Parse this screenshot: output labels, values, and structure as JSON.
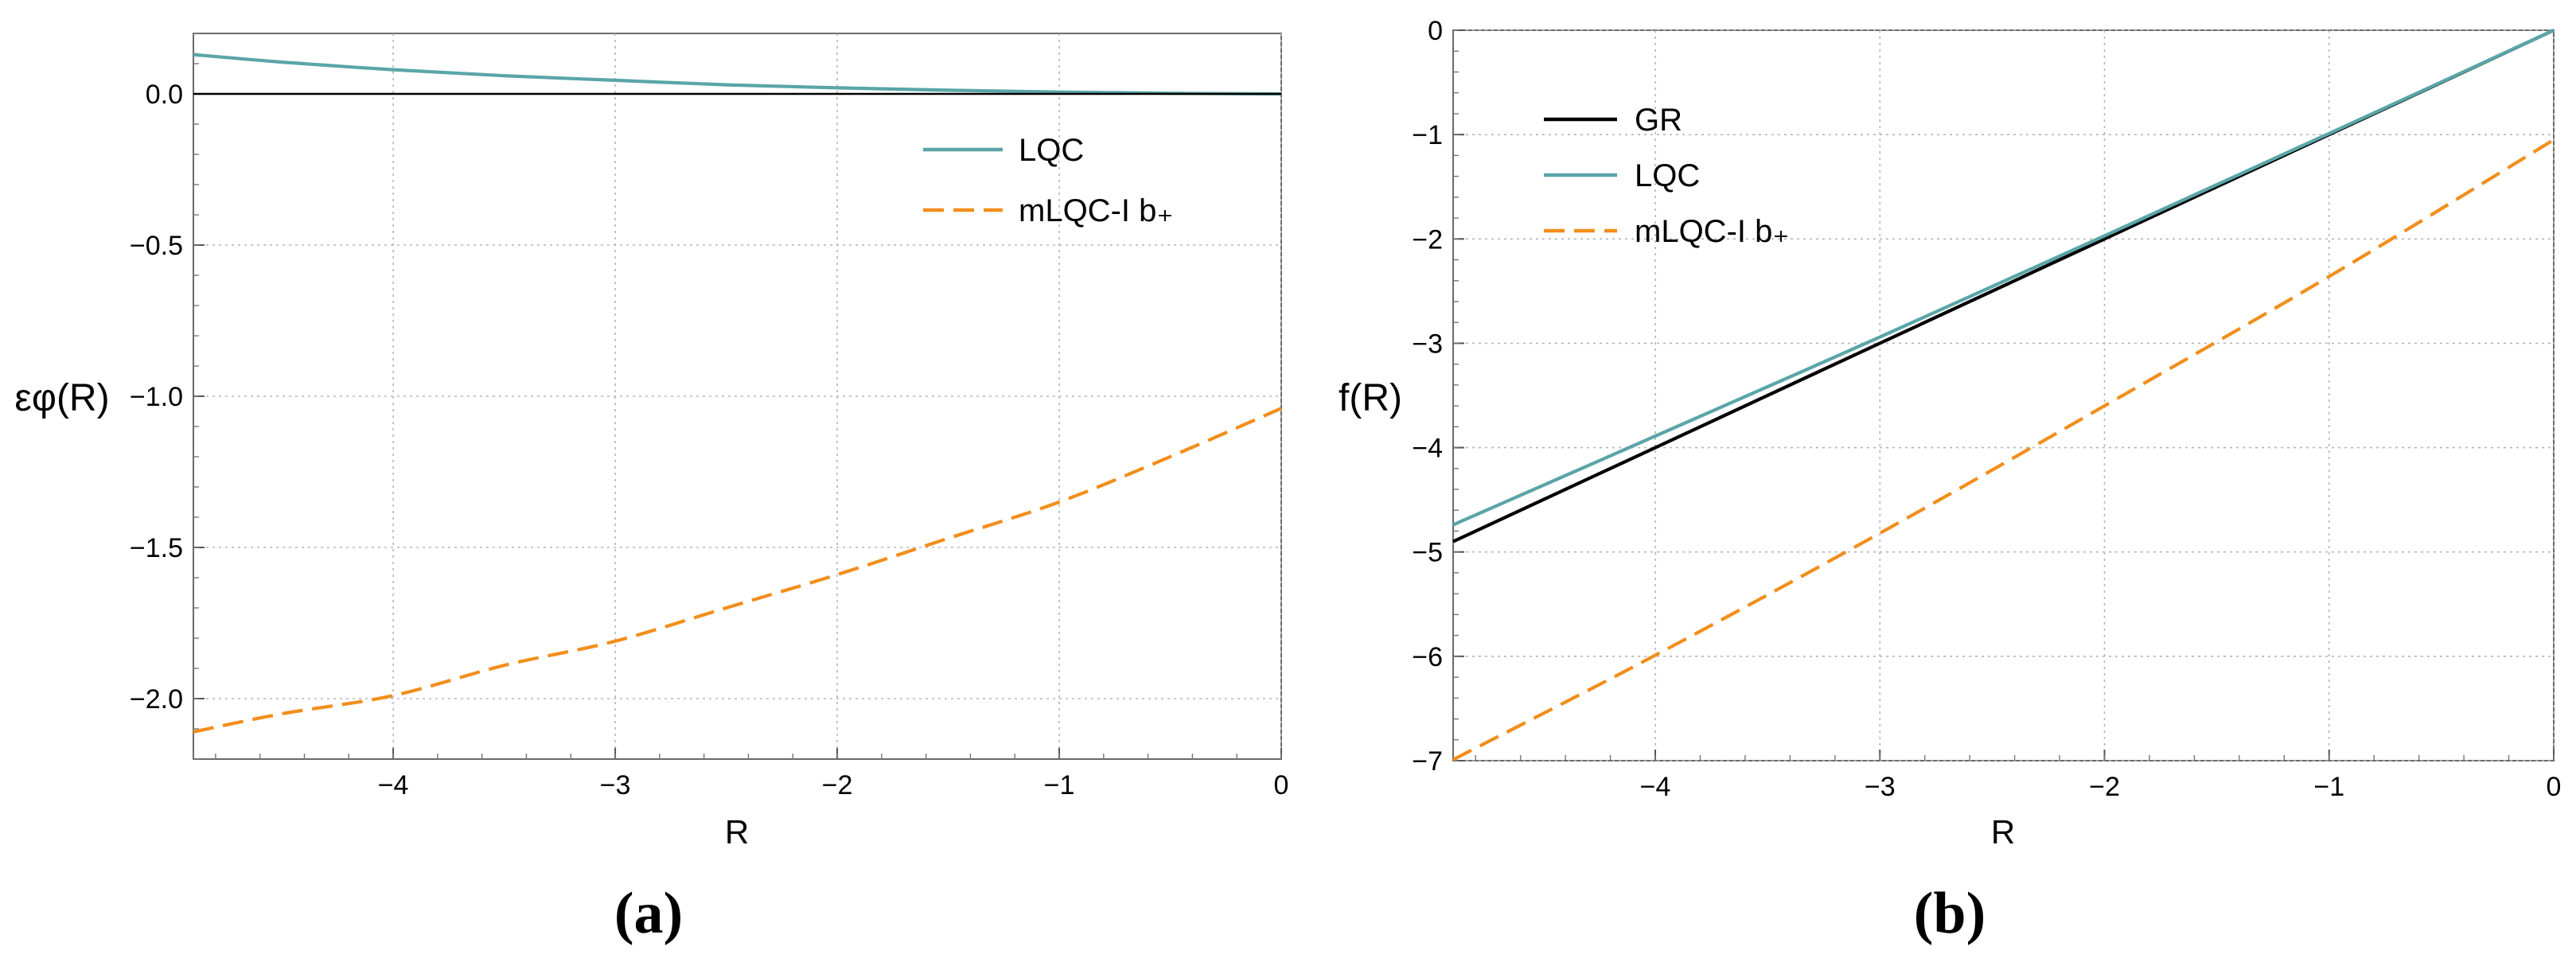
{
  "colors": {
    "gr": "#000000",
    "lqc": "#5aa5a8",
    "mlqc": "#f28e1c",
    "grid": "#b5b5b5",
    "zero_line": "#000000"
  },
  "chart_data": [
    {
      "type": "line",
      "panel_label": "(a)",
      "xlabel": "R",
      "ylabel": "εφ(R)",
      "xlim": [
        -4.9,
        0
      ],
      "ylim": [
        -2.2,
        0.2
      ],
      "xticks": [
        -4,
        -3,
        -2,
        -1,
        0
      ],
      "xtick_labels": [
        "−4",
        "−3",
        "−2",
        "−1",
        "0"
      ],
      "yticks": [
        0.0,
        -0.5,
        -1.0,
        -1.5,
        -2.0
      ],
      "ytick_labels": [
        "0.0",
        "−0.5",
        "−1.0",
        "−1.5",
        "−2.0"
      ],
      "grid": true,
      "legend_position": "top-right",
      "x": [
        -4.9,
        -4.5,
        -4.0,
        -3.5,
        -3.0,
        -2.5,
        -2.0,
        -1.5,
        -1.0,
        -0.5,
        0.0
      ],
      "series": [
        {
          "name": "LQC",
          "key": "lqc",
          "dash": "solid",
          "legend": true,
          "values": [
            0.13,
            0.105,
            0.08,
            0.06,
            0.045,
            0.03,
            0.02,
            0.012,
            0.006,
            0.002,
            0.0
          ]
        },
        {
          "name": "mLQC-I b₊",
          "key": "mlqc",
          "dash": "dashed",
          "legend": true,
          "values": [
            -2.11,
            -2.05,
            -1.99,
            -1.89,
            -1.81,
            -1.7,
            -1.59,
            -1.47,
            -1.35,
            -1.2,
            -1.04
          ]
        },
        {
          "name": "",
          "key": "zero_line",
          "dash": "solid",
          "legend": false,
          "values": [
            0,
            0,
            0,
            0,
            0,
            0,
            0,
            0,
            0,
            0,
            0
          ]
        }
      ]
    },
    {
      "type": "line",
      "panel_label": "(b)",
      "xlabel": "R",
      "ylabel": "f(R)",
      "xlim": [
        -4.9,
        0
      ],
      "ylim": [
        -7,
        0
      ],
      "xticks": [
        -4,
        -3,
        -2,
        -1,
        0
      ],
      "xtick_labels": [
        "−4",
        "−3",
        "−2",
        "−1",
        "0"
      ],
      "yticks": [
        0,
        -1,
        -2,
        -3,
        -4,
        -5,
        -6,
        -7
      ],
      "ytick_labels": [
        "0",
        "−1",
        "−2",
        "−3",
        "−4",
        "−5",
        "−6",
        "−7"
      ],
      "grid": true,
      "legend_position": "top-left",
      "x": [
        -4.9,
        -4.0,
        -3.0,
        -2.0,
        -1.0,
        0.0
      ],
      "series": [
        {
          "name": "GR",
          "key": "gr",
          "dash": "solid",
          "legend": true,
          "values": [
            -4.9,
            -4.0,
            -3.0,
            -2.0,
            -1.0,
            0.0
          ]
        },
        {
          "name": "LQC",
          "key": "lqc",
          "dash": "solid",
          "legend": true,
          "values": [
            -4.74,
            -3.89,
            -2.94,
            -1.97,
            -0.99,
            0.0
          ]
        },
        {
          "name": "mLQC-I b₊",
          "key": "mlqc",
          "dash": "dashed",
          "legend": true,
          "values": [
            -6.99,
            -5.99,
            -4.82,
            -3.6,
            -2.36,
            -1.05
          ]
        }
      ]
    }
  ]
}
